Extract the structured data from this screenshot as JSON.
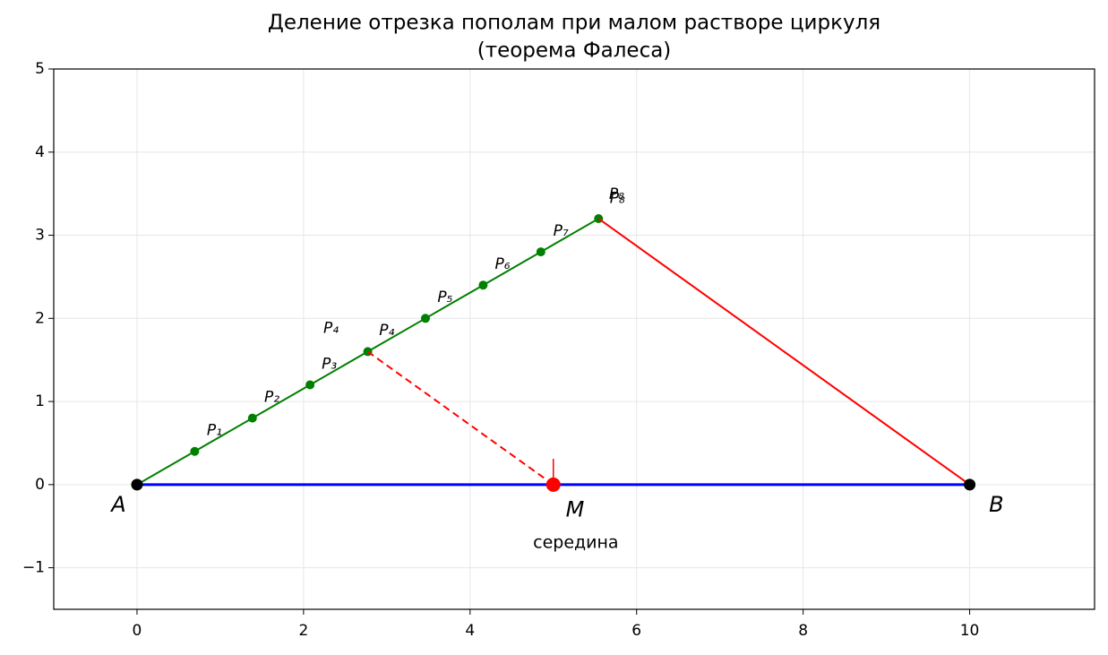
{
  "chart_data": {
    "type": "line",
    "title": "Деление отрезка пополам при малом растворе циркуля",
    "subtitle": "(теорема Фалеса)",
    "xlim": [
      -1,
      11.5
    ],
    "ylim": [
      -1.5,
      5
    ],
    "xticks": [
      0,
      2,
      4,
      6,
      8,
      10
    ],
    "yticks": [
      {
        "value": -1,
        "label": "−1"
      },
      0,
      1,
      2,
      3,
      4,
      5
    ],
    "grid": true,
    "series": [
      {
        "color": "#0000ff",
        "width": 3,
        "x": [
          0,
          10
        ],
        "values": [
          0,
          0
        ]
      },
      {
        "color": "#008000",
        "width": 2,
        "marker": true,
        "x": [
          0,
          0.693,
          1.386,
          2.078,
          2.771,
          3.464,
          4.157,
          4.85,
          5.543
        ],
        "values": [
          0,
          0.4,
          0.8,
          1.2,
          1.6,
          2.0,
          2.4,
          2.8,
          3.2
        ]
      },
      {
        "color": "#ff0000",
        "width": 2,
        "x": [
          5.543,
          10
        ],
        "values": [
          3.2,
          0
        ]
      },
      {
        "color": "#ff0000",
        "width": 2,
        "dashed": true,
        "x": [
          2.771,
          5
        ],
        "values": [
          1.6,
          0
        ]
      },
      {
        "color": "#ff0000",
        "width": 1.5,
        "x": [
          5,
          5
        ],
        "values": [
          0,
          0.31
        ]
      }
    ],
    "points": [
      {
        "x": 0,
        "y": 0,
        "color": "#000000",
        "size": 6
      },
      {
        "x": 10,
        "y": 0,
        "color": "#000000",
        "size": 6
      },
      {
        "x": 5,
        "y": 0,
        "color": "#ff0000",
        "size": 8
      }
    ],
    "annotations": [
      {
        "text": "P₁",
        "x": 0.93,
        "y": 0.65,
        "color": "#000000",
        "size": 17,
        "italic": true
      },
      {
        "text": "P₂",
        "x": 1.62,
        "y": 1.05,
        "color": "#000000",
        "size": 17,
        "italic": true
      },
      {
        "text": "P₃",
        "x": 2.31,
        "y": 1.45,
        "color": "#000000",
        "size": 17,
        "italic": true
      },
      {
        "text": "P₄",
        "x": 3.0,
        "y": 1.85,
        "color": "#000000",
        "size": 17,
        "italic": true
      },
      {
        "text": "P₅",
        "x": 3.7,
        "y": 2.25,
        "color": "#000000",
        "size": 17,
        "italic": true
      },
      {
        "text": "P₆",
        "x": 4.39,
        "y": 2.65,
        "color": "#000000",
        "size": 17,
        "italic": true
      },
      {
        "text": "P₇",
        "x": 5.09,
        "y": 3.05,
        "color": "#000000",
        "size": 17,
        "italic": true
      },
      {
        "text": "P₈",
        "x": 5.76,
        "y": 3.49,
        "color": "#ff0000",
        "size": 17,
        "italic": true
      },
      {
        "text": "P₈",
        "x": 5.77,
        "y": 3.44,
        "color": "#000000",
        "size": 17,
        "italic": true
      },
      {
        "text": "P₄",
        "x": 2.33,
        "y": 1.88,
        "color": "#ff0000",
        "size": 17,
        "italic": true
      },
      {
        "text": "A",
        "x": -0.22,
        "y": -0.25,
        "color": "#000000",
        "size": 24,
        "italic": true
      },
      {
        "text": "B",
        "x": 10.32,
        "y": -0.25,
        "color": "#000000",
        "size": 24,
        "italic": true
      },
      {
        "text": "M",
        "x": 5.26,
        "y": -0.31,
        "color": "#ff0000",
        "size": 24,
        "italic": true
      },
      {
        "text": "середина",
        "x": 5.27,
        "y": -0.7,
        "color": "#ff0000",
        "size": 19,
        "italic": false
      }
    ]
  }
}
